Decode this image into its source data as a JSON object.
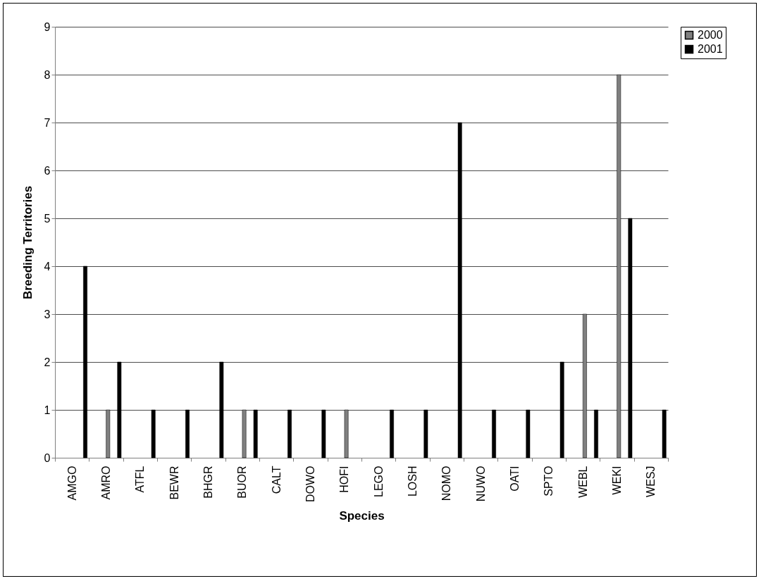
{
  "chart_data": {
    "type": "bar",
    "xlabel": "Species",
    "ylabel": "Breeding Territories",
    "categories": [
      "AMGO",
      "AMRO",
      "ATFL",
      "BEWR",
      "BHGR",
      "BUOR",
      "CALT",
      "DOWO",
      "HOFI",
      "LEGO",
      "LOSH",
      "NOMO",
      "NUWO",
      "OATI",
      "SPTO",
      "WEBL",
      "WEKI",
      "WESJ"
    ],
    "series": [
      {
        "name": "2000",
        "color": "#808080",
        "values": [
          null,
          1,
          null,
          null,
          null,
          1,
          null,
          null,
          1,
          null,
          null,
          null,
          null,
          null,
          null,
          3,
          8,
          null
        ]
      },
      {
        "name": "2001",
        "color": "#000000",
        "values": [
          4,
          2,
          1,
          1,
          2,
          1,
          1,
          1,
          null,
          1,
          1,
          7,
          1,
          1,
          2,
          1,
          5,
          1
        ]
      }
    ],
    "ylim": [
      0,
      9
    ],
    "yticks": [
      0,
      1,
      2,
      3,
      4,
      5,
      6,
      7,
      8,
      9
    ],
    "grid": "y",
    "legend": "right"
  }
}
